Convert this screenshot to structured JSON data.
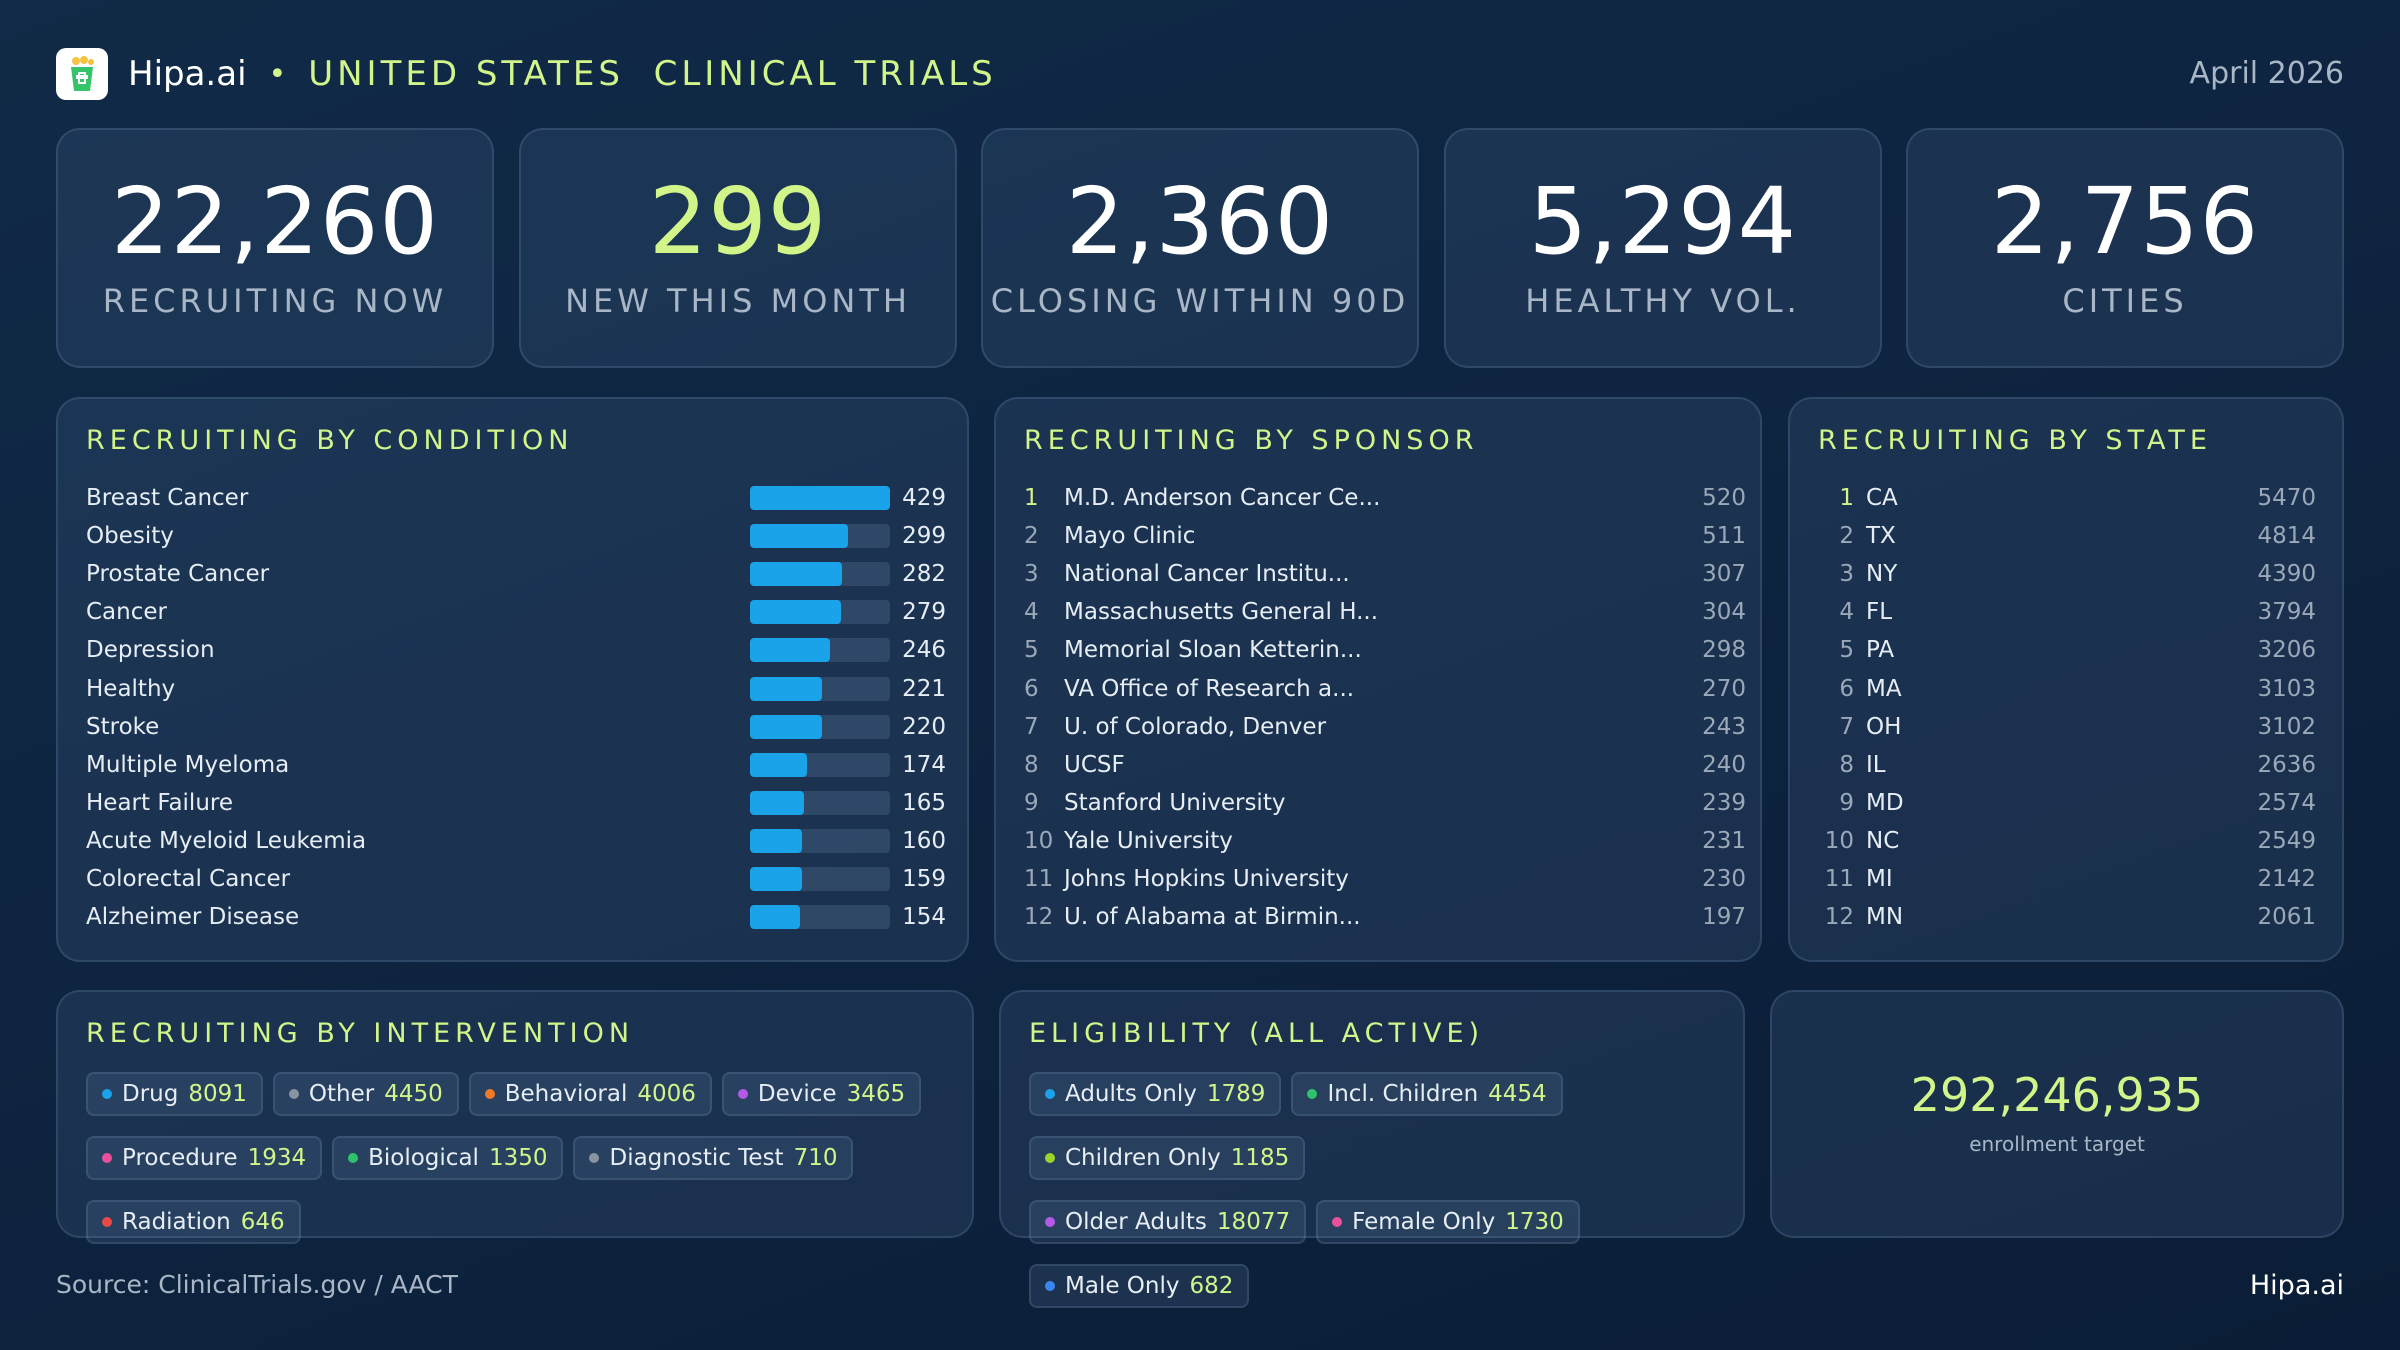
{
  "header": {
    "brand": "Hipa.ai",
    "separator": "•",
    "title": "UNITED STATES  CLINICAL TRIALS",
    "date": "April 2026"
  },
  "kpis": [
    {
      "value": "22,260",
      "label": "RECRUITING NOW"
    },
    {
      "value": "299",
      "label": "NEW THIS MONTH"
    },
    {
      "value": "2,360",
      "label": "CLOSING WITHIN 90D"
    },
    {
      "value": "5,294",
      "label": "HEALTHY VOL."
    },
    {
      "value": "2,756",
      "label": "CITIES"
    }
  ],
  "condition": {
    "title": "RECRUITING BY CONDITION",
    "max_value": 429,
    "items": [
      {
        "name": "Breast Cancer",
        "value": 429
      },
      {
        "name": "Obesity",
        "value": 299
      },
      {
        "name": "Prostate Cancer",
        "value": 282
      },
      {
        "name": "Cancer",
        "value": 279
      },
      {
        "name": "Depression",
        "value": 246
      },
      {
        "name": "Healthy",
        "value": 221
      },
      {
        "name": "Stroke",
        "value": 220
      },
      {
        "name": "Multiple Myeloma",
        "value": 174
      },
      {
        "name": "Heart Failure",
        "value": 165
      },
      {
        "name": "Acute Myeloid Leukemia",
        "value": 160
      },
      {
        "name": "Colorectal Cancer",
        "value": 159
      },
      {
        "name": "Alzheimer Disease",
        "value": 154
      }
    ]
  },
  "sponsor": {
    "title": "RECRUITING BY SPONSOR",
    "items": [
      {
        "rank": "1",
        "name": "M.D. Anderson Cancer Ce...",
        "value": "520"
      },
      {
        "rank": "2",
        "name": "Mayo Clinic",
        "value": "511"
      },
      {
        "rank": "3",
        "name": "National Cancer Institu...",
        "value": "307"
      },
      {
        "rank": "4",
        "name": "Massachusetts General H...",
        "value": "304"
      },
      {
        "rank": "5",
        "name": "Memorial Sloan Ketterin...",
        "value": "298"
      },
      {
        "rank": "6",
        "name": "VA Office of Research a...",
        "value": "270"
      },
      {
        "rank": "7",
        "name": "U. of Colorado, Denver",
        "value": "243"
      },
      {
        "rank": "8",
        "name": "UCSF",
        "value": "240"
      },
      {
        "rank": "9",
        "name": "Stanford University",
        "value": "239"
      },
      {
        "rank": "10",
        "name": "Yale University",
        "value": "231"
      },
      {
        "rank": "11",
        "name": "Johns Hopkins University",
        "value": "230"
      },
      {
        "rank": "12",
        "name": "U. of Alabama at Birmin...",
        "value": "197"
      }
    ]
  },
  "state": {
    "title": "RECRUITING BY STATE",
    "items": [
      {
        "rank": "1",
        "name": "CA",
        "value": "5470"
      },
      {
        "rank": "2",
        "name": "TX",
        "value": "4814"
      },
      {
        "rank": "3",
        "name": "NY",
        "value": "4390"
      },
      {
        "rank": "4",
        "name": "FL",
        "value": "3794"
      },
      {
        "rank": "5",
        "name": "PA",
        "value": "3206"
      },
      {
        "rank": "6",
        "name": "MA",
        "value": "3103"
      },
      {
        "rank": "7",
        "name": "OH",
        "value": "3102"
      },
      {
        "rank": "8",
        "name": "IL",
        "value": "2636"
      },
      {
        "rank": "9",
        "name": "MD",
        "value": "2574"
      },
      {
        "rank": "10",
        "name": "NC",
        "value": "2549"
      },
      {
        "rank": "11",
        "name": "MI",
        "value": "2142"
      },
      {
        "rank": "12",
        "name": "MN",
        "value": "2061"
      }
    ]
  },
  "intervention": {
    "title": "RECRUITING BY INTERVENTION",
    "chips": [
      {
        "label": "Drug",
        "count": "8091",
        "color": "#1aa3e8"
      },
      {
        "label": "Other",
        "count": "4450",
        "color": "#8a94a0"
      },
      {
        "label": "Behavioral",
        "count": "4006",
        "color": "#f07a2a"
      },
      {
        "label": "Device",
        "count": "3465",
        "color": "#b45ae6"
      },
      {
        "label": "Procedure",
        "count": "1934",
        "color": "#ec4f9a"
      },
      {
        "label": "Biological",
        "count": "1350",
        "color": "#2fc26a"
      },
      {
        "label": "Diagnostic Test",
        "count": "710",
        "color": "#8a94a0"
      },
      {
        "label": "Radiation",
        "count": "646",
        "color": "#e84a4a"
      }
    ]
  },
  "eligibility": {
    "title": "ELIGIBILITY (ALL ACTIVE)",
    "chips": [
      {
        "label": "Adults Only",
        "count": "1789",
        "color": "#1aa3e8"
      },
      {
        "label": "Incl. Children",
        "count": "4454",
        "color": "#2fc26a"
      },
      {
        "label": "Children Only",
        "count": "1185",
        "color": "#9ad62a"
      },
      {
        "label": "Older Adults",
        "count": "18077",
        "color": "#b45ae6"
      },
      {
        "label": "Female Only",
        "count": "1730",
        "color": "#ec4f9a"
      },
      {
        "label": "Male Only",
        "count": "682",
        "color": "#3a86f0"
      }
    ]
  },
  "enrollment": {
    "value": "292,246,935",
    "label": "enrollment target"
  },
  "footer": {
    "source": "Source: ClinicalTrials.gov / AACT",
    "brand": "Hipa.ai"
  }
}
